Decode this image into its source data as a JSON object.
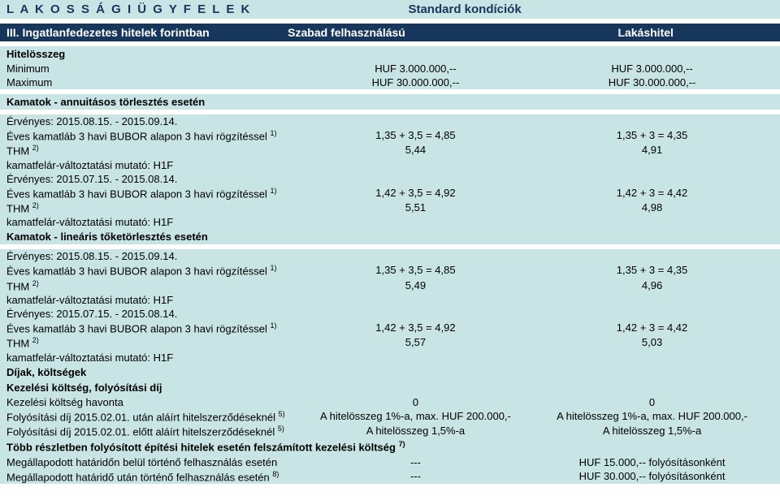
{
  "colors": {
    "teal_bg": "#c8e4e4",
    "navy_bg": "#16365c",
    "navy_text": "#16365c",
    "white": "#ffffff"
  },
  "header": {
    "title": "L A K O S S Á G I   Ü G Y F E L E K",
    "right": "Standard kondíciók"
  },
  "subheader": {
    "left": "III. Ingatlanfedezetes hitelek forintban",
    "mid": "Szabad felhasználású",
    "right": "Lakáshitel"
  },
  "sec1": {
    "title": "Hitelösszeg",
    "rows": [
      {
        "label": "Minimum",
        "v1": "HUF 3.000.000,--",
        "v2": "HUF 3.000.000,--"
      },
      {
        "label": "Maximum",
        "v1": "HUF 30.000.000,--",
        "v2": "HUF 30.000.000,--"
      }
    ]
  },
  "sec2": {
    "title": "Kamatok - annuitásos törlesztés esetén",
    "block1": {
      "valid": "Érvényes:    2015.08.15. - 2015.09.14.",
      "r1": {
        "label": "Éves kamatláb 3 havi BUBOR alapon 3 havi rögzítéssel ",
        "sup": "1)",
        "v1": "1,35 + 3,5 = 4,85",
        "v2": "1,35 + 3 = 4,35"
      },
      "r2": {
        "label": "THM ",
        "sup": "2)",
        "v1": "5,44",
        "v2": "4,91"
      },
      "r3": {
        "label": "kamatfelár-változtatási mutató: H1F"
      }
    },
    "block2": {
      "valid": "Érvényes:    2015.07.15. - 2015.08.14.",
      "r1": {
        "label": "Éves kamatláb 3 havi BUBOR alapon 3 havi rögzítéssel ",
        "sup": "1)",
        "v1": "1,42 + 3,5 = 4,92",
        "v2": "1,42 + 3 = 4,42"
      },
      "r2": {
        "label": "THM ",
        "sup": "2)",
        "v1": "5,51",
        "v2": "4,98"
      },
      "r3": {
        "label": "kamatfelár-változtatási mutató: H1F"
      }
    }
  },
  "sec3": {
    "title": "Kamatok - lineáris tőketörlesztés esetén",
    "block1": {
      "valid": "Érvényes:    2015.08.15. - 2015.09.14.",
      "r1": {
        "label": "Éves kamatláb 3 havi BUBOR alapon 3 havi rögzítéssel ",
        "sup": "1)",
        "v1": "1,35 + 3,5 = 4,85",
        "v2": "1,35 + 3 = 4,35"
      },
      "r2": {
        "label": "THM ",
        "sup": "2)",
        "v1": "5,49",
        "v2": "4,96"
      },
      "r3": {
        "label": "kamatfelár-változtatási mutató: H1F"
      }
    },
    "block2": {
      "valid": "Érvényes:    2015.07.15. - 2015.08.14.",
      "r1": {
        "label": "Éves kamatláb 3 havi BUBOR alapon 3 havi rögzítéssel ",
        "sup": "1)",
        "v1": "1,42 + 3,5 = 4,92",
        "v2": "1,42 + 3 = 4,42"
      },
      "r2": {
        "label": "THM ",
        "sup": "2)",
        "v1": "5,57",
        "v2": "5,03"
      },
      "r3": {
        "label": "kamatfelár-változtatási mutató: H1F"
      }
    }
  },
  "sec4": {
    "title1": "Díjak, költségek",
    "title2": "Kezelési költség, folyósítási díj",
    "r1": {
      "label": "Kezelési költség havonta",
      "v1": "0",
      "v2": "0"
    },
    "r2": {
      "label": "Folyósítási díj 2015.02.01. után aláírt hitelszerződéseknél ",
      "sup": "5)",
      "v1": "A hitelösszeg 1%-a, max. HUF 200.000,-",
      "v2": "A hitelösszeg 1%-a, max. HUF 200.000,-"
    },
    "r3": {
      "label": "Folyósítási díj 2015.02.01. előtt aláírt hitelszerződéseknél ",
      "sup": "5)",
      "v1": "A hitelösszeg 1,5%-a",
      "v2": "A hitelösszeg 1,5%-a"
    },
    "title3": {
      "label": "Több részletben folyósított építési hitelek esetén felszámított kezelési költség ",
      "sup": "7)"
    },
    "r4": {
      "label": "Megállapodott határidőn belül történő felhasználás esetén",
      "v1": "---",
      "v2": "HUF 15.000,-- folyósításonként"
    },
    "r5": {
      "label": "Megállapodott határidő után történő felhasználás esetén ",
      "sup": "8)",
      "v1": "---",
      "v2": "HUF 30.000,-- folyósításonként"
    }
  }
}
